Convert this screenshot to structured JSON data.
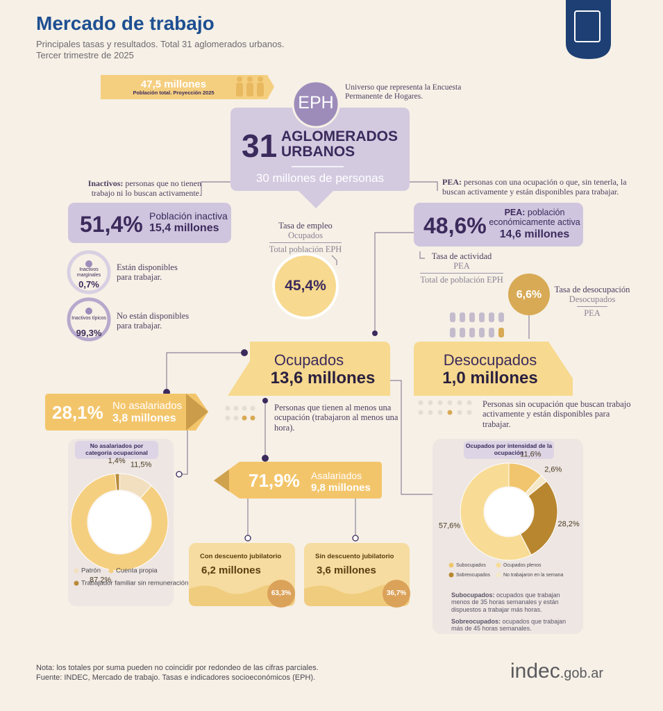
{
  "header": {
    "title": "Mercado de trabajo",
    "subtitle": "Principales tasas y resultados. Total 31 aglomerados urbanos.",
    "period": "Tercer trimestre de 2025"
  },
  "population": {
    "value": "47,5 millones",
    "label": "Población total. Proyección 2025"
  },
  "eph": {
    "badge": "EPH",
    "note": "Universo que representa la Encuesta Permanente de Hogares.",
    "number": "31",
    "title": "AGLOMERADOS URBANOS",
    "people": "30 millones de personas"
  },
  "inactivos": {
    "def_term": "Inactivos:",
    "def_text": "personas que no tienen trabajo ni lo buscan activamente.",
    "rate": "51,4%",
    "label": "Población inactiva",
    "amount": "15,4 millones",
    "marginales": {
      "label": "Inactivos marginales",
      "rate": "0,7%",
      "text": "Están disponibles para trabajar."
    },
    "tipicos": {
      "label": "Inactivos típicos",
      "rate": "99,3%",
      "text": "No están disponibles para trabajar."
    }
  },
  "pea": {
    "def_term": "PEA:",
    "def_text": "personas con una ocupación o que, sin tenerla, la buscan activamente y están disponibles para trabajar.",
    "rate": "48,6%",
    "label_term": "PEA:",
    "label": "población económicamente activa",
    "amount": "14,6 millones",
    "activity": {
      "title": "Tasa de actividad",
      "numerator": "PEA",
      "denominator": "Total de población EPH"
    }
  },
  "employment_rate": {
    "title": "Tasa de empleo",
    "numerator": "Ocupados",
    "denominator": "Total población EPH",
    "rate": "45,4%"
  },
  "unemployment_rate": {
    "title": "Tasa de desocupación",
    "numerator": "Desocupados",
    "denominator": "PEA",
    "rate": "6,6%"
  },
  "ocupados": {
    "title": "Ocupados",
    "amount": "13,6 millones",
    "note": "Personas que tienen al menos una ocupación (trabajaron al menos una hora)."
  },
  "desocupados": {
    "title": "Desocupados",
    "amount": "1,0 millones",
    "note": "Personas sin ocupación que buscan trabajo activamente y están disponibles para trabajar."
  },
  "no_asalariados": {
    "rate": "28,1%",
    "title": "No asalariados",
    "amount": "3,8 millones"
  },
  "asalariados": {
    "rate": "71,9%",
    "title": "Asalariados",
    "amount": "9,8 millones",
    "con": {
      "title": "Con descuento jubilatorio",
      "amount": "6,2 millones",
      "rate": "63,3%"
    },
    "sin": {
      "title": "Sin descuento jubilatorio",
      "amount": "3,6 millones",
      "rate": "36,7%"
    }
  },
  "intensity_notes": [
    {
      "term": "Subocupados:",
      "text": "ocupados que trabajan menos de 35 horas semanales y están dispuestos a trabajar más horas."
    },
    {
      "term": "Sobreocupados:",
      "text": "ocupados que trabajan más de 45 horas semanales."
    }
  ],
  "footer": {
    "note": "Nota: los totales por suma pueden no coincidir por redondeo de las cifras parciales.",
    "source": "Fuente: INDEC, Mercado de trabajo. Tasas e indicadores socioeconómicos (EPH).",
    "logo_main": "indec",
    "logo_domain": ".gob.ar"
  },
  "chart_data": [
    {
      "type": "pie",
      "title": "No asalariados por categoría ocupacional",
      "categories": [
        "Patrón",
        "Cuenta propia",
        "Trabajador familiar sin remuneración"
      ],
      "values": [
        11.5,
        87.2,
        1.4
      ],
      "value_labels": [
        "11,5%",
        "87,2%",
        "1,4%"
      ],
      "colors": [
        "#f1dfc0",
        "#f5cf80",
        "#b98a3a"
      ]
    },
    {
      "type": "pie",
      "title": "Ocupados por intensidad de la ocupación",
      "categories": [
        "Subocupados",
        "No trabajaron en la semana",
        "Sobreocupados",
        "Ocupados plenos"
      ],
      "values": [
        11.6,
        2.6,
        28.2,
        57.6
      ],
      "value_labels": [
        "11,6%",
        "2,6%",
        "28,2%",
        "57,6%"
      ],
      "colors": [
        "#f0c56e",
        "#f5e8c8",
        "#b8862f",
        "#f8dc96"
      ]
    }
  ]
}
